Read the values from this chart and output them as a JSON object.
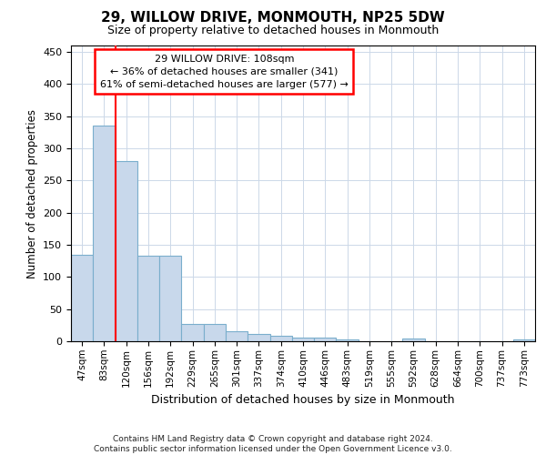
{
  "title1": "29, WILLOW DRIVE, MONMOUTH, NP25 5DW",
  "title2": "Size of property relative to detached houses in Monmouth",
  "xlabel": "Distribution of detached houses by size in Monmouth",
  "ylabel": "Number of detached properties",
  "categories": [
    "47sqm",
    "83sqm",
    "120sqm",
    "156sqm",
    "192sqm",
    "229sqm",
    "265sqm",
    "301sqm",
    "337sqm",
    "374sqm",
    "410sqm",
    "446sqm",
    "483sqm",
    "519sqm",
    "555sqm",
    "592sqm",
    "628sqm",
    "664sqm",
    "700sqm",
    "737sqm",
    "773sqm"
  ],
  "values": [
    135,
    335,
    280,
    133,
    133,
    27,
    27,
    15,
    11,
    8,
    6,
    5,
    3,
    0,
    0,
    4,
    0,
    0,
    0,
    0,
    3
  ],
  "bar_color": "#c8d8eb",
  "bar_edge_color": "#7aaecc",
  "grid_color": "#ccd8e8",
  "background_color": "#ffffff",
  "property_label": "29 WILLOW DRIVE: 108sqm",
  "annotation_line1": "← 36% of detached houses are smaller (341)",
  "annotation_line2": "61% of semi-detached houses are larger (577) →",
  "vline_x": 1.5,
  "ylim": [
    0,
    460
  ],
  "yticks": [
    0,
    50,
    100,
    150,
    200,
    250,
    300,
    350,
    400,
    450
  ],
  "footer_line1": "Contains HM Land Registry data © Crown copyright and database right 2024.",
  "footer_line2": "Contains public sector information licensed under the Open Government Licence v3.0."
}
